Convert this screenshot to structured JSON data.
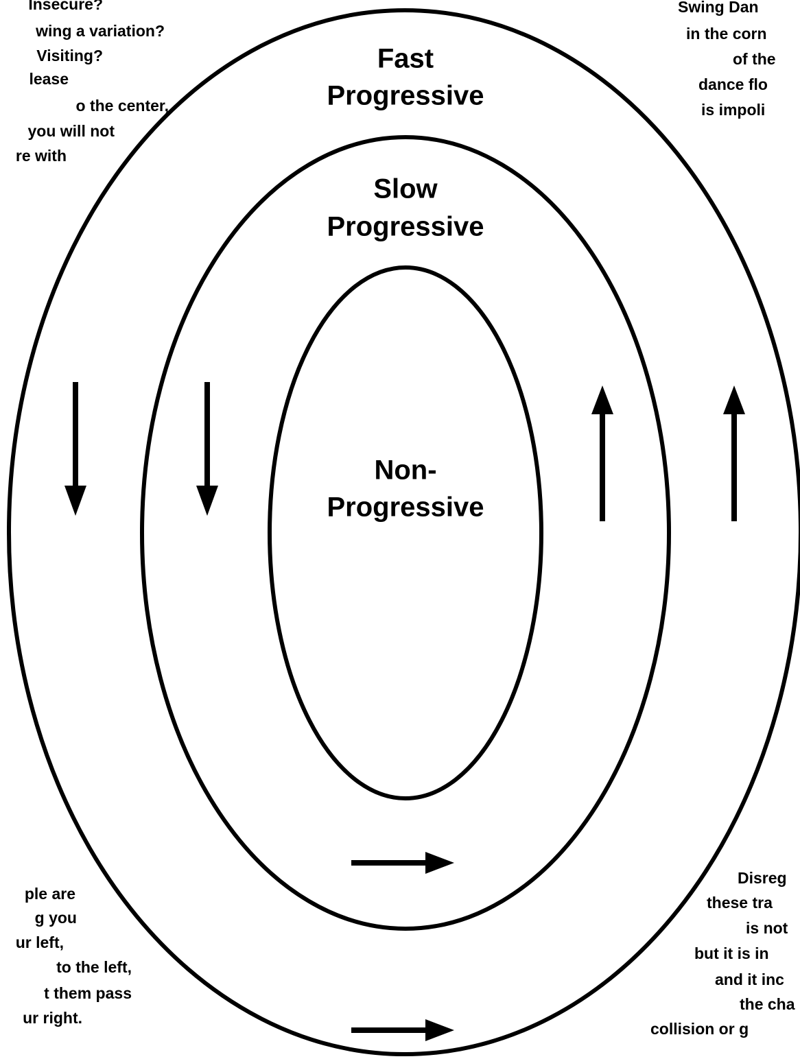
{
  "zones": [
    {
      "lines": [
        "Fast",
        "Progressive"
      ]
    },
    {
      "lines": [
        "Slow",
        "Progressive"
      ]
    },
    {
      "lines": [
        "Non-",
        "Progressive"
      ]
    }
  ],
  "notes": {
    "top_left": [
      "Insecure?",
      "wing a variation?",
      " Visiting?",
      "lease",
      "o the center,",
      "you will not",
      "re with"
    ],
    "top_right": [
      "Swing Dan",
      "in the corn",
      "of the",
      "dance flo",
      "is impoli"
    ],
    "bottom_left": [
      "ple are",
      "g you",
      "ur left,",
      "to the left,",
      "t them pass",
      "ur right."
    ],
    "bottom_right": [
      "Disreg",
      "these tra",
      "is not",
      "but it is in",
      "and it inc",
      "the cha",
      "collision or g"
    ]
  }
}
